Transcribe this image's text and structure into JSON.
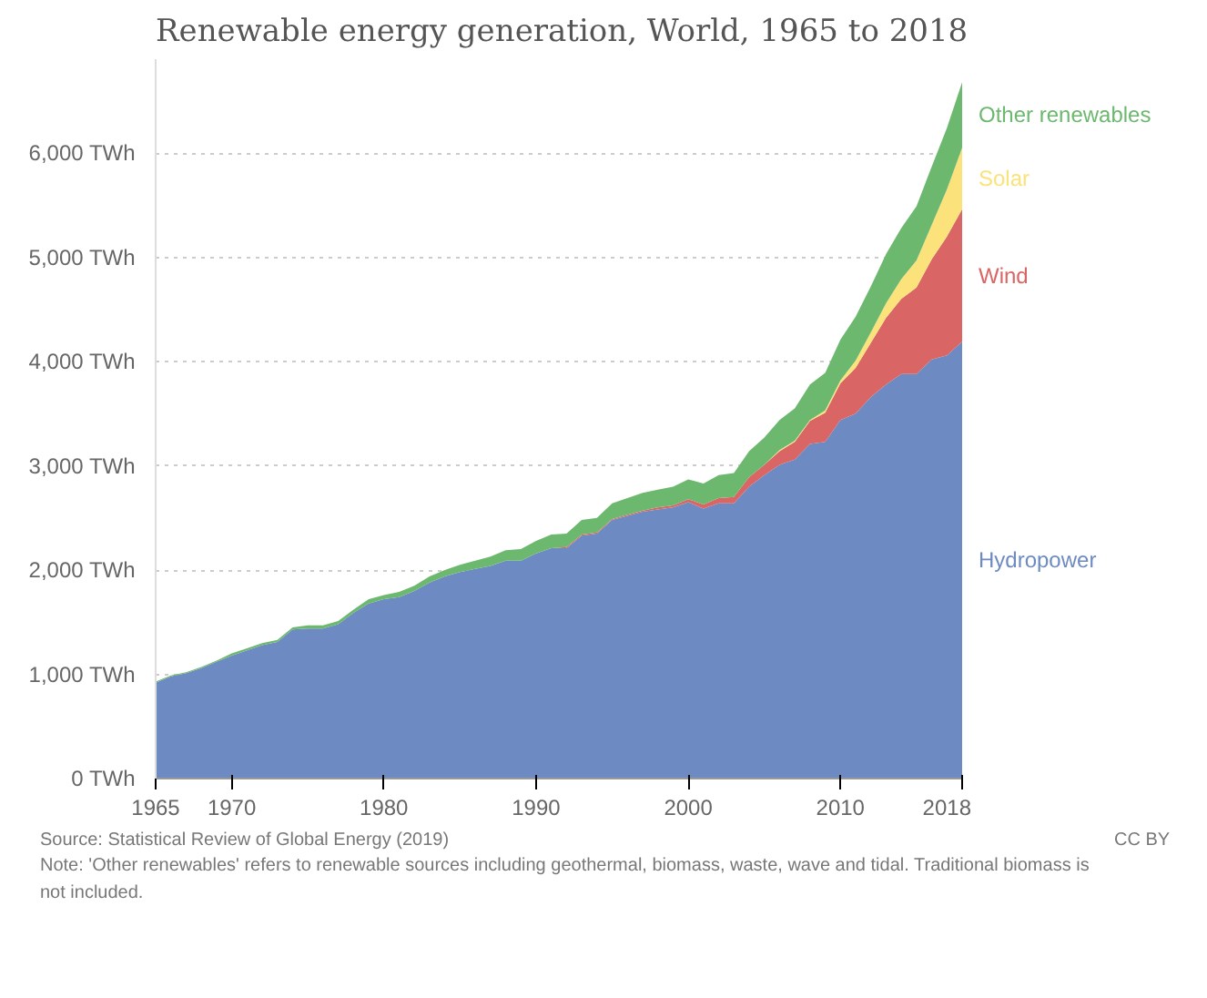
{
  "chart_data": {
    "type": "area",
    "stacked": true,
    "title": "Renewable energy generation, World, 1965 to 2018",
    "x": [
      1965,
      1966,
      1967,
      1968,
      1969,
      1970,
      1971,
      1972,
      1973,
      1974,
      1975,
      1976,
      1977,
      1978,
      1979,
      1980,
      1981,
      1982,
      1983,
      1984,
      1985,
      1986,
      1987,
      1988,
      1989,
      1990,
      1991,
      1992,
      1993,
      1994,
      1995,
      1996,
      1997,
      1998,
      1999,
      2000,
      2001,
      2002,
      2003,
      2004,
      2005,
      2006,
      2007,
      2008,
      2009,
      2010,
      2011,
      2012,
      2013,
      2014,
      2015,
      2016,
      2017,
      2018
    ],
    "series": [
      {
        "name": "Hydropower",
        "color": "#6d8bc2",
        "values": [
          920,
          980,
          1010,
          1060,
          1120,
          1180,
          1230,
          1280,
          1310,
          1430,
          1440,
          1440,
          1480,
          1590,
          1680,
          1720,
          1740,
          1800,
          1880,
          1940,
          1980,
          2010,
          2040,
          2090,
          2090,
          2160,
          2210,
          2210,
          2330,
          2350,
          2480,
          2520,
          2560,
          2580,
          2600,
          2650,
          2590,
          2640,
          2640,
          2800,
          2910,
          3010,
          3060,
          3210,
          3230,
          3440,
          3500,
          3660,
          3780,
          3880,
          3880,
          4020,
          4060,
          4190
        ]
      },
      {
        "name": "Wind",
        "color": "#d96565",
        "values": [
          0,
          0,
          0,
          0,
          0,
          0,
          0,
          0,
          0,
          0,
          0,
          0,
          0,
          0,
          0,
          0,
          0,
          0,
          0,
          0,
          0,
          0,
          0,
          0,
          0,
          0,
          0,
          10,
          10,
          10,
          10,
          10,
          10,
          20,
          20,
          30,
          40,
          50,
          60,
          90,
          100,
          130,
          170,
          220,
          280,
          350,
          440,
          520,
          640,
          720,
          830,
          960,
          1140,
          1270
        ]
      },
      {
        "name": "Solar",
        "color": "#fbe27a",
        "values": [
          0,
          0,
          0,
          0,
          0,
          0,
          0,
          0,
          0,
          0,
          0,
          0,
          0,
          0,
          0,
          0,
          0,
          0,
          0,
          0,
          0,
          0,
          0,
          0,
          0,
          0,
          0,
          0,
          0,
          0,
          0,
          0,
          0,
          0,
          0,
          0,
          0,
          0,
          0,
          0,
          0,
          10,
          10,
          10,
          20,
          30,
          70,
          100,
          140,
          190,
          260,
          330,
          450,
          590
        ]
      },
      {
        "name": "Other renewables",
        "color": "#6db86f",
        "values": [
          10,
          10,
          10,
          10,
          10,
          20,
          20,
          20,
          20,
          20,
          30,
          30,
          30,
          30,
          40,
          40,
          50,
          50,
          60,
          60,
          70,
          80,
          90,
          100,
          110,
          120,
          130,
          130,
          140,
          140,
          150,
          160,
          170,
          170,
          180,
          190,
          200,
          220,
          230,
          250,
          260,
          290,
          310,
          340,
          360,
          390,
          420,
          440,
          470,
          490,
          520,
          560,
          590,
          630
        ]
      }
    ],
    "xlim": [
      1965,
      2018
    ],
    "ylim": [
      0,
      6900
    ],
    "xticks": [
      1965,
      1970,
      1980,
      1990,
      2000,
      2010,
      2018
    ],
    "yticks": [
      {
        "value": 0,
        "label": "0 TWh"
      },
      {
        "value": 1000,
        "label": "1,000 TWh"
      },
      {
        "value": 2000,
        "label": "2,000 TWh"
      },
      {
        "value": 3000,
        "label": "3,000 TWh"
      },
      {
        "value": 4000,
        "label": "4,000 TWh"
      },
      {
        "value": 5000,
        "label": "5,000 TWh"
      },
      {
        "value": 6000,
        "label": "6,000 TWh"
      }
    ],
    "grid": "y",
    "annotations": [
      "Source: Statistical Review of Global Energy (2019)",
      "Note: 'Other renewables' refers to renewable sources including geothermal, biomass, waste, wave and tidal. Traditional biomass is not included.",
      "CC BY"
    ]
  }
}
